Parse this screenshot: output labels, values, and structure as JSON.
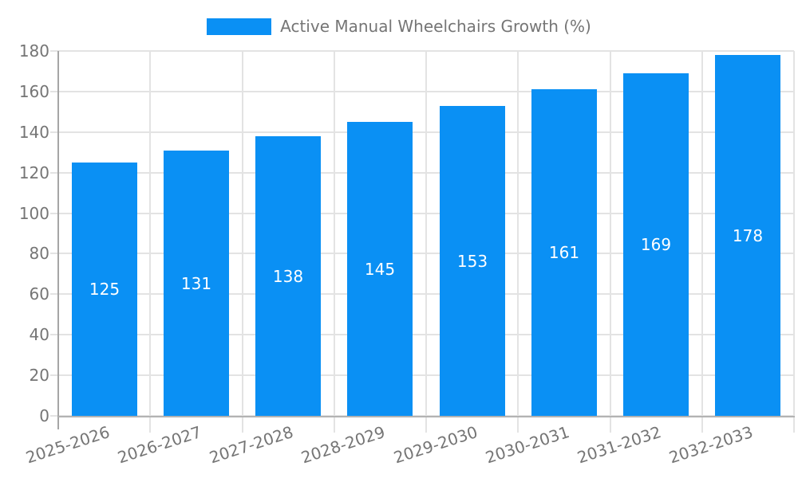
{
  "legend": {
    "label": "Active Manual Wheelchairs Growth (%)"
  },
  "chart_data": {
    "type": "bar",
    "title": "Active Manual Wheelchairs Growth (%)",
    "series_name": "Active Manual Wheelchairs Growth (%)",
    "categories": [
      "2025-2026",
      "2026-2027",
      "2027-2028",
      "2028-2029",
      "2029-2030",
      "2030-2031",
      "2031-2032",
      "2032-2033"
    ],
    "values": [
      125,
      131,
      138,
      145,
      153,
      161,
      169,
      178
    ],
    "xlabel": "",
    "ylabel": "",
    "ylim": [
      0,
      180
    ],
    "ytick_step": 20,
    "yticks": [
      0,
      20,
      40,
      60,
      80,
      100,
      120,
      140,
      160,
      180
    ],
    "grid": true,
    "legend_position": "top-center",
    "bar_label_position": "inside-middle",
    "colors": {
      "bar": "#0a90f4",
      "bar_label_text": "#ffffff",
      "axis_text": "#757575",
      "legend_text": "#757575",
      "gridline": "#e3e3e3",
      "y_axis_line": "#a6a6a6",
      "x_axis_line": "#b3b3b3",
      "background": "#ffffff"
    }
  }
}
